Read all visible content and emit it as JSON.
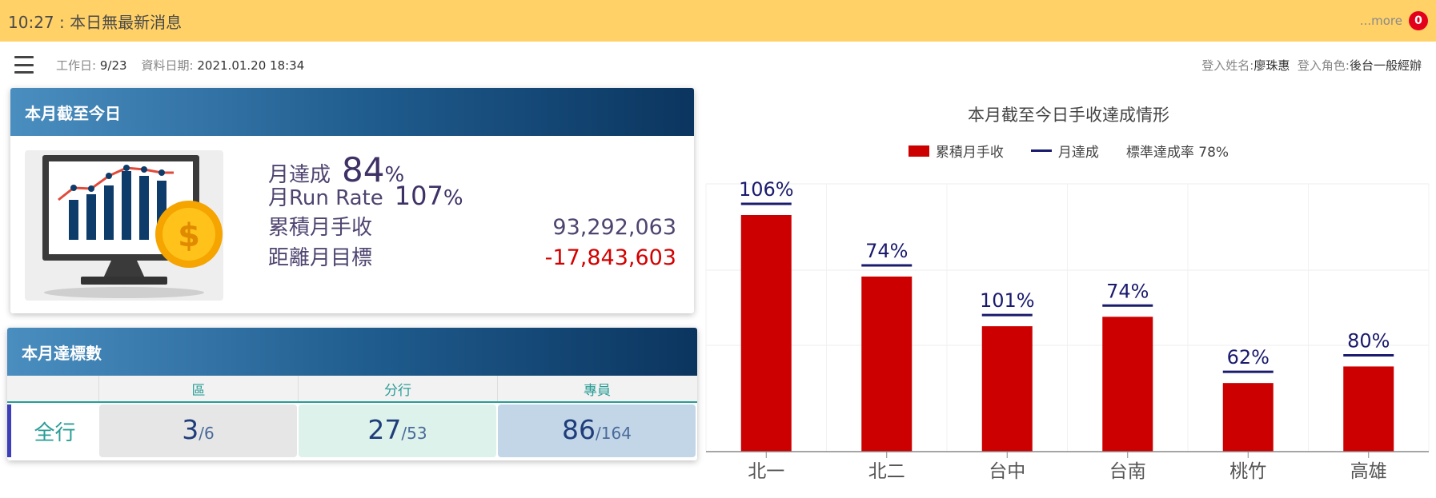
{
  "notice": {
    "message": "10:27 : 本日無最新消息",
    "more_label": "...more",
    "badge_count": "0"
  },
  "info": {
    "workday_label": "工作日:",
    "workday_value": "9/23",
    "date_label": "資料日期:",
    "date_value": "2021.01.20 18:34",
    "user_name_label": "登入姓名:",
    "user_name": "廖珠惠",
    "user_role_label": "登入角色:",
    "user_role": "後台一般經辦"
  },
  "month_card": {
    "title": "本月截至今日",
    "achieve_label": "月達成",
    "achieve_value": "84",
    "achieve_unit": "%",
    "runrate_label": "月Run Rate",
    "runrate_value": "107",
    "runrate_unit": "%",
    "revenue_label": "累積月手收",
    "revenue_value": "93,292,063",
    "gap_label": "距離月目標",
    "gap_value": "-17,843,603"
  },
  "target_card": {
    "title": "本月達標數",
    "columns": [
      "區",
      "分行",
      "專員"
    ],
    "row_label": "全行",
    "cells": [
      {
        "num": "3",
        "den": "/6"
      },
      {
        "num": "27",
        "den": "/53"
      },
      {
        "num": "86",
        "den": "/164"
      }
    ]
  },
  "chart_data": {
    "type": "bar",
    "title": "本月截至今日手收達成情形",
    "legend": [
      "累積月手收",
      "月達成",
      "標準達成率 78%"
    ],
    "legend_placement": "top-center",
    "categories": [
      "北一",
      "北二",
      "台中",
      "台南",
      "桃竹",
      "高雄"
    ],
    "values": [
      106,
      74,
      101,
      74,
      62,
      80
    ],
    "bar_heights_relative": [
      100,
      74,
      53,
      57,
      29,
      36
    ],
    "achievement_pct": [
      106,
      74,
      101,
      74,
      62,
      80
    ],
    "labels": [
      "106%",
      "74%",
      "101%",
      "74%",
      "62%",
      "80%"
    ],
    "grid": true,
    "colors": {
      "bar": "#cc0000",
      "marker": "#1a1a6e",
      "label": "#1a1a6e"
    }
  }
}
